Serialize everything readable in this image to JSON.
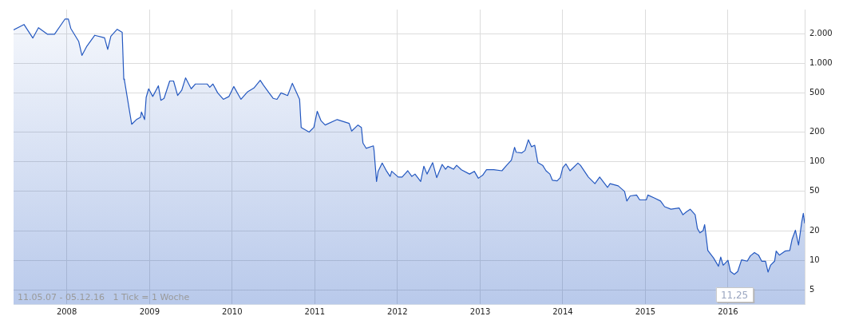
{
  "chart_data": {
    "type": "area",
    "log": "y",
    "grid": true,
    "legend": false,
    "marker": "none",
    "line_style": "solid",
    "xlim": [
      "2007-05-11",
      "2016-12-05"
    ],
    "xticks": [
      {
        "value": "2008",
        "label": "2008"
      },
      {
        "value": "2009",
        "label": "2009"
      },
      {
        "value": "2010",
        "label": "2010"
      },
      {
        "value": "2011",
        "label": "2011"
      },
      {
        "value": "2012",
        "label": "2012"
      },
      {
        "value": "2013",
        "label": "2013"
      },
      {
        "value": "2014",
        "label": "2014"
      },
      {
        "value": "2015",
        "label": "2015"
      },
      {
        "value": "2016",
        "label": "2016"
      }
    ],
    "ylim": [
      3.6,
      3500
    ],
    "yticks": [
      5,
      10,
      20,
      50,
      100,
      200,
      500,
      {
        "value": 1000,
        "label": "1.000"
      },
      {
        "value": 2000,
        "label": "2.000"
      }
    ],
    "annotations": [
      "11.05.07 - 05.12.16   1 Tick = 1 Woche",
      "11,25"
    ],
    "series": [
      {
        "color": "#2458c0",
        "x": [
          "2007-05-11",
          "2007-06-26",
          "2007-08-04",
          "2007-08-29",
          "2007-10-07",
          "2007-11-08",
          "2007-12-24",
          "2008-01-08",
          "2008-01-19",
          "2008-02-23",
          "2008-03-08",
          "2008-03-30",
          "2008-05-04",
          "2008-06-16",
          "2008-06-30",
          "2008-07-14",
          "2008-08-11",
          "2008-09-02",
          "2008-09-09",
          "2008-09-12",
          "2008-10-14",
          "2008-11-04",
          "2008-11-22",
          "2008-11-26",
          "2008-12-10",
          "2008-12-17",
          "2008-12-28",
          "2009-01-15",
          "2009-02-09",
          "2009-02-20",
          "2009-03-06",
          "2009-03-31",
          "2009-04-17",
          "2009-05-05",
          "2009-05-23",
          "2009-06-09",
          "2009-07-04",
          "2009-07-22",
          "2009-09-13",
          "2009-09-24",
          "2009-10-08",
          "2009-10-29",
          "2009-11-23",
          "2009-12-18",
          "2010-01-08",
          "2010-02-09",
          "2010-03-09",
          "2010-04-07",
          "2010-05-05",
          "2010-05-19",
          "2010-06-13",
          "2010-07-01",
          "2010-07-18",
          "2010-08-05",
          "2010-09-03",
          "2010-09-24",
          "2010-10-08",
          "2010-10-26",
          "2010-11-02",
          "2010-12-07",
          "2010-12-28",
          "2011-01-12",
          "2011-01-29",
          "2011-02-16",
          "2011-04-10",
          "2011-06-02",
          "2011-06-13",
          "2011-07-11",
          "2011-07-26",
          "2011-08-02",
          "2011-08-16",
          "2011-09-17",
          "2011-09-20",
          "2011-10-01",
          "2011-10-08",
          "2011-10-26",
          "2011-11-12",
          "2011-11-30",
          "2011-12-07",
          "2012-01-05",
          "2012-01-22",
          "2012-02-16",
          "2012-03-05",
          "2012-03-19",
          "2012-04-13",
          "2012-04-27",
          "2012-05-11",
          "2012-06-05",
          "2012-06-23",
          "2012-07-17",
          "2012-08-01",
          "2012-08-11",
          "2012-09-05",
          "2012-09-19",
          "2012-10-10",
          "2012-11-15",
          "2012-12-06",
          "2012-12-24",
          "2013-01-12",
          "2013-01-29",
          "2013-03-02",
          "2013-04-07",
          "2013-04-28",
          "2013-05-19",
          "2013-06-02",
          "2013-06-09",
          "2013-07-04",
          "2013-07-18",
          "2013-08-02",
          "2013-08-16",
          "2013-08-30",
          "2013-09-13",
          "2013-10-04",
          "2013-10-19",
          "2013-11-05",
          "2013-11-16",
          "2013-12-07",
          "2013-12-21",
          "2014-01-01",
          "2014-01-15",
          "2014-02-02",
          "2014-03-09",
          "2014-03-20",
          "2014-04-24",
          "2014-05-23",
          "2014-06-13",
          "2014-07-18",
          "2014-07-29",
          "2014-09-03",
          "2014-10-01",
          "2014-10-11",
          "2014-10-26",
          "2014-11-23",
          "2014-12-07",
          "2015-01-05",
          "2015-01-12",
          "2015-02-09",
          "2015-03-09",
          "2015-03-27",
          "2015-04-24",
          "2015-05-30",
          "2015-06-16",
          "2015-07-01",
          "2015-07-18",
          "2015-08-09",
          "2015-08-19",
          "2015-08-30",
          "2015-09-13",
          "2015-09-20",
          "2015-10-04",
          "2015-10-29",
          "2015-11-20",
          "2015-11-30",
          "2015-12-11",
          "2016-01-01",
          "2016-01-12",
          "2016-01-29",
          "2016-02-13",
          "2016-03-01",
          "2016-03-26",
          "2016-04-09",
          "2016-04-27",
          "2016-05-15",
          "2016-05-29",
          "2016-06-15",
          "2016-06-26",
          "2016-07-07",
          "2016-07-25",
          "2016-08-01",
          "2016-08-15",
          "2016-09-09",
          "2016-09-30",
          "2016-10-10",
          "2016-10-25",
          "2016-11-08",
          "2016-11-22",
          "2016-11-29",
          "2016-12-05"
        ],
        "values": [
          2180,
          2470,
          1800,
          2290,
          1970,
          1970,
          2800,
          2800,
          2250,
          1660,
          1200,
          1490,
          1920,
          1810,
          1380,
          1880,
          2210,
          2060,
          690,
          670,
          240,
          268,
          283,
          320,
          268,
          450,
          550,
          460,
          590,
          420,
          440,
          660,
          660,
          470,
          530,
          710,
          550,
          615,
          615,
          570,
          615,
          500,
          430,
          460,
          580,
          430,
          510,
          560,
          670,
          600,
          500,
          440,
          430,
          500,
          470,
          625,
          530,
          430,
          223,
          200,
          223,
          325,
          260,
          236,
          268,
          245,
          205,
          236,
          223,
          155,
          137,
          145,
          130,
          63,
          80,
          97,
          82,
          71,
          80,
          70,
          70,
          81,
          71,
          75,
          63,
          90,
          75,
          98,
          69,
          94,
          84,
          90,
          84,
          92,
          83,
          75,
          80,
          68,
          73,
          83,
          83,
          81,
          92,
          104,
          140,
          125,
          123,
          130,
          167,
          142,
          147,
          98,
          92,
          81,
          75,
          65,
          64,
          69,
          87,
          95,
          81,
          97,
          92,
          70,
          60,
          70,
          55,
          60,
          57,
          50,
          40,
          45,
          46,
          41,
          41,
          46,
          43,
          40,
          35,
          33,
          34,
          29,
          31,
          33,
          29,
          21,
          19,
          20,
          23,
          12.6,
          10.6,
          8.7,
          10.8,
          8.9,
          10,
          7.7,
          7.2,
          7.7,
          10.1,
          9.8,
          11.1,
          12,
          11.3,
          9.8,
          9.8,
          7.6,
          8.9,
          9.8,
          12.4,
          11.3,
          12.4,
          12.6,
          16.2,
          20.2,
          14.3,
          24.5,
          30,
          23.7
        ]
      }
    ]
  }
}
